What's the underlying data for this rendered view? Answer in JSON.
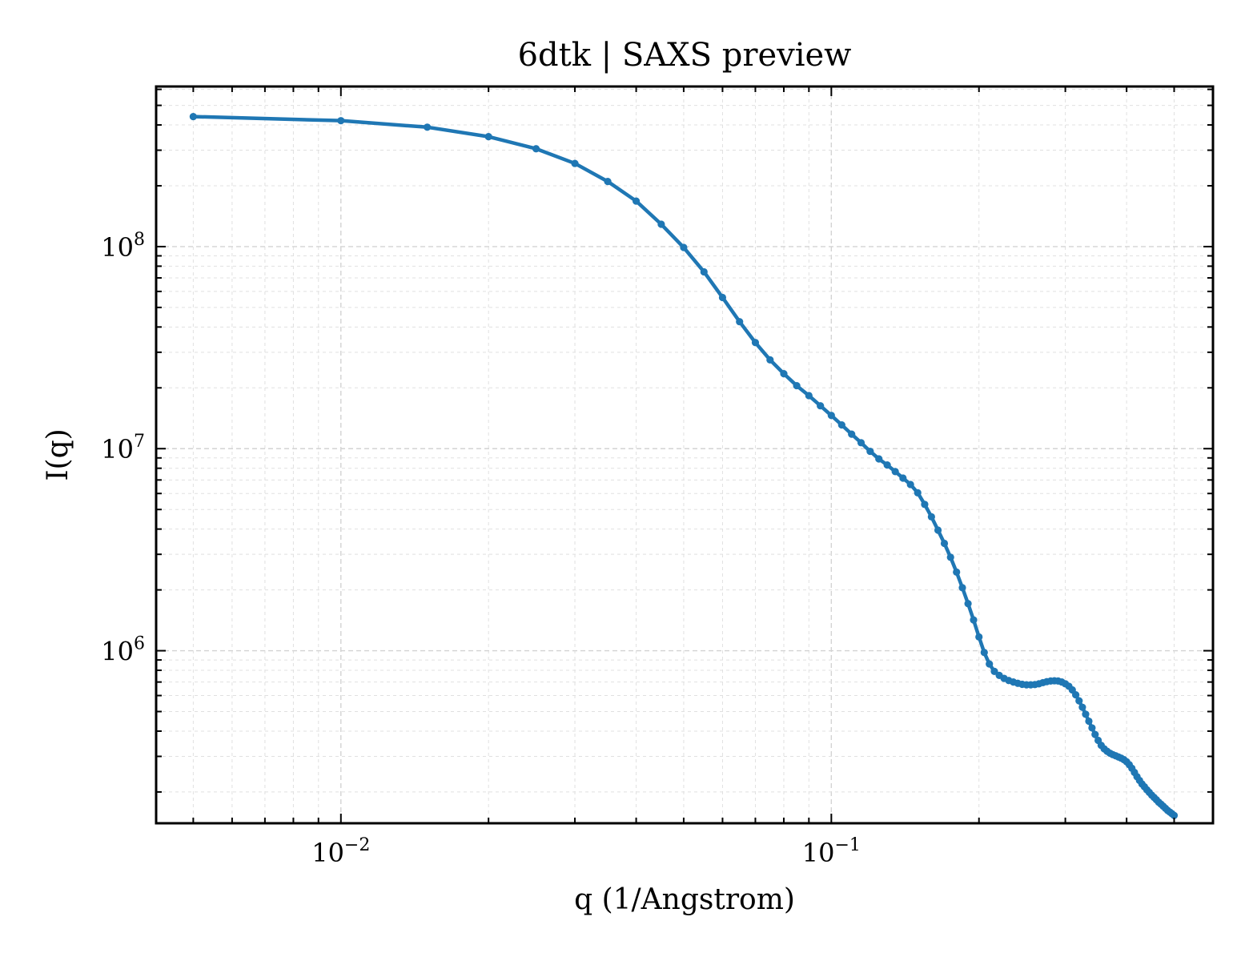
{
  "chart_data": {
    "type": "line",
    "title": "6dtk | SAXS preview",
    "xlabel": "q (1/Angstrom)",
    "ylabel": "I(q)",
    "xscale": "log",
    "yscale": "log",
    "xlim": [
      0.0042,
      0.6
    ],
    "ylim": [
      140000,
      620000000
    ],
    "grid": true,
    "x_ticks": [
      {
        "value": 0.01,
        "base": "10",
        "exp": "−2"
      },
      {
        "value": 0.1,
        "base": "10",
        "exp": "−1"
      }
    ],
    "y_ticks": [
      {
        "value": 1000000,
        "base": "10",
        "exp": "6"
      },
      {
        "value": 10000000,
        "base": "10",
        "exp": "7"
      },
      {
        "value": 100000000,
        "base": "10",
        "exp": "8"
      }
    ],
    "color": "#1f77b4",
    "series": [
      {
        "x": [
          0.005,
          0.01,
          0.015,
          0.02,
          0.025,
          0.03,
          0.035,
          0.04,
          0.045,
          0.05,
          0.055,
          0.06,
          0.065,
          0.07,
          0.075,
          0.08,
          0.085,
          0.09,
          0.095,
          0.1,
          0.105,
          0.11,
          0.115,
          0.12,
          0.125,
          0.13,
          0.135,
          0.14,
          0.145,
          0.15,
          0.155,
          0.16,
          0.165,
          0.17,
          0.175,
          0.18,
          0.185,
          0.19,
          0.195,
          0.2,
          0.205,
          0.21,
          0.215,
          0.22,
          0.225,
          0.23,
          0.235,
          0.24,
          0.245,
          0.25,
          0.255,
          0.26,
          0.265,
          0.27,
          0.275,
          0.28,
          0.285,
          0.29,
          0.295,
          0.3,
          0.305,
          0.31,
          0.315,
          0.32,
          0.325,
          0.33,
          0.335,
          0.34,
          0.345,
          0.35,
          0.355,
          0.36,
          0.365,
          0.37,
          0.375,
          0.38,
          0.385,
          0.39,
          0.395,
          0.4,
          0.405,
          0.41,
          0.415,
          0.42,
          0.425,
          0.43,
          0.435,
          0.44,
          0.445,
          0.45,
          0.455,
          0.46,
          0.465,
          0.47,
          0.475,
          0.48,
          0.485,
          0.49,
          0.495,
          0.5
        ],
        "y": [
          440000000,
          420000000,
          390000000,
          350000000,
          305000000,
          258000000,
          210000000,
          168000000,
          129000000,
          99000000,
          75000000,
          56000000,
          42500000,
          33500000,
          27500000,
          23500000,
          20500000,
          18300000,
          16300000,
          14600000,
          13100000,
          11800000,
          10700000,
          9700000,
          8900000,
          8300000,
          7700000,
          7150000,
          6650000,
          6050000,
          5300000,
          4600000,
          3950000,
          3400000,
          2900000,
          2450000,
          2050000,
          1710000,
          1420000,
          1170000,
          980000,
          860000,
          790000,
          755000,
          730000,
          712000,
          700000,
          690000,
          682000,
          678000,
          678000,
          680000,
          686000,
          695000,
          703000,
          708000,
          710000,
          708000,
          700000,
          686000,
          667000,
          640000,
          605000,
          565000,
          525000,
          485000,
          448000,
          415000,
          385000,
          360000,
          340000,
          327000,
          318000,
          311000,
          306000,
          302000,
          298000,
          294000,
          289000,
          282000,
          273000,
          262000,
          250000,
          238000,
          228000,
          219000,
          212000,
          205000,
          199000,
          193000,
          188000,
          183000,
          178000,
          174000,
          170000,
          166000,
          162000,
          159000,
          156000,
          153000
        ]
      }
    ]
  }
}
